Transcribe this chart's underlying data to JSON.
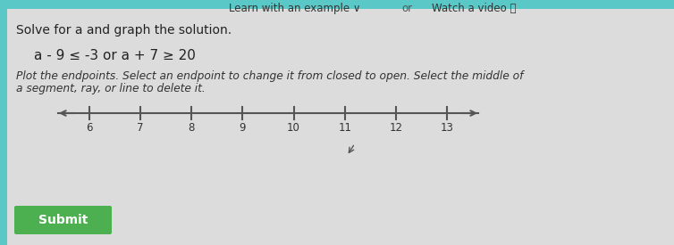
{
  "bg_color": "#dcdcdc",
  "title_text": "Learn with an example ∨",
  "or_text": "or",
  "watch_text": "Watch a video ⓘ",
  "solve_text": "Solve for a and graph the solution.",
  "equation_text": "a - 9 ≤ -3 or a + 7 ≥ 20",
  "instruction_line1": "Plot the endpoints. Select an endpoint to change it from closed to open. Select the middle of",
  "instruction_line2": "a segment, ray, or line to delete it.",
  "tick_labels": [
    6,
    7,
    8,
    9,
    10,
    11,
    12,
    13
  ],
  "submit_text": "Submit",
  "submit_bg": "#4caf50",
  "submit_text_color": "#ffffff",
  "left_bar_color": "#5bc8c8",
  "top_bar_color": "#5bc8c8",
  "line_color": "#555555",
  "text_dark": "#222222",
  "text_mid": "#444444",
  "text_italic_color": "#333333"
}
